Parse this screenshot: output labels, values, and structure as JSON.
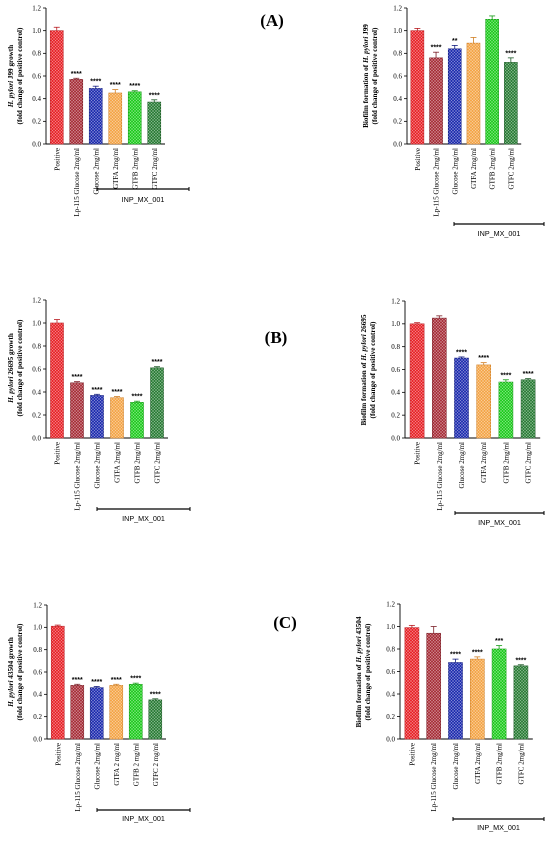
{
  "panel_labels": [
    "(A)",
    "(B)",
    "(C)"
  ],
  "group_label": "INP_MX_001",
  "colors": {
    "red": "#e8262b",
    "maroon": "#a8323c",
    "blue": "#2230b0",
    "orange": "#f4a64a",
    "green": "#22cc22",
    "darkgreen": "#2e7f3a"
  },
  "chart_data": [
    {
      "type": "bar",
      "panel": "(A)",
      "ylabel_italic": "H. pylori",
      "ylabel_line1_rest": " J99 growth",
      "ylabel_line2": "(fold change of positive control)",
      "categories": [
        "Positive",
        "Lp-115 Glucose 2mg/ml",
        "Glucose 2mg/ml",
        "GTFA 2mg/ml",
        "GTFB 2mg/ml",
        "GTFC 2mg/ml"
      ],
      "values": [
        1.0,
        0.57,
        0.49,
        0.45,
        0.46,
        0.37
      ],
      "errors": [
        0.03,
        0.01,
        0.02,
        0.03,
        0.01,
        0.02
      ],
      "significance": [
        "",
        "****",
        "****",
        "****",
        "****",
        "****"
      ],
      "yticks": [
        "0.0",
        "0.2",
        "0.4",
        "0.6",
        "0.8",
        "1.0",
        "1.2"
      ],
      "ylim": [
        0,
        1.2
      ]
    },
    {
      "type": "bar",
      "panel": "(A)",
      "ylabel_line1_pre": "Biofilm formation of ",
      "ylabel_italic": "H. pylori",
      "ylabel_line1_rest": " J99",
      "ylabel_line2": "(fold change of positive control)",
      "categories": [
        "Positive",
        "Lp-115 Glucose 2mg/ml",
        "Glucose 2mg/ml",
        "GTFA 2mg/ml",
        "GTFB 2mg/ml",
        "GTFC 2mg/ml"
      ],
      "values": [
        1.0,
        0.76,
        0.84,
        0.89,
        1.1,
        0.72
      ],
      "errors": [
        0.02,
        0.05,
        0.03,
        0.05,
        0.03,
        0.04
      ],
      "significance": [
        "",
        "****",
        "**",
        "",
        "",
        "****"
      ],
      "yticks": [
        "0.0",
        "0.2",
        "0.4",
        "0.6",
        "0.8",
        "1.0",
        "1.2"
      ],
      "ylim": [
        0,
        1.2
      ]
    },
    {
      "type": "bar",
      "panel": "(B)",
      "ylabel_italic": "H. pylori",
      "ylabel_line1_rest": " 26695 growth",
      "ylabel_line2": "(fold change of positive control)",
      "categories": [
        "Positive",
        "Lp-115 Glucose 2mg/ml",
        "Glucose 2mg/ml",
        "GTFA 2mg/ml",
        "GTFB 2mg/ml",
        "GTFC 2mg/ml"
      ],
      "values": [
        1.0,
        0.48,
        0.37,
        0.35,
        0.31,
        0.61
      ],
      "errors": [
        0.03,
        0.01,
        0.01,
        0.01,
        0.01,
        0.01
      ],
      "significance": [
        "",
        "****",
        "****",
        "****",
        "****",
        "****"
      ],
      "yticks": [
        "0.0",
        "0.2",
        "0.4",
        "0.6",
        "0.8",
        "1.0",
        "1.2"
      ],
      "ylim": [
        0,
        1.2
      ]
    },
    {
      "type": "bar",
      "panel": "(B)",
      "ylabel_line1_pre": "Biofilm formation of ",
      "ylabel_italic": "H. pylori",
      "ylabel_line1_rest": " 26695",
      "ylabel_line2": "(fold change of positive control)",
      "categories": [
        "Positive",
        "Lp-115 Glucose 2mg/ml",
        "Glucose 2mg/ml",
        "GTFA 2mg/ml",
        "GTFB 2mg/ml",
        "GTFC 2mg/ml"
      ],
      "values": [
        1.0,
        1.05,
        0.7,
        0.64,
        0.49,
        0.51
      ],
      "errors": [
        0.01,
        0.02,
        0.01,
        0.02,
        0.02,
        0.01
      ],
      "significance": [
        "",
        "",
        "****",
        "****",
        "****",
        "****"
      ],
      "yticks": [
        "0.0",
        "0.2",
        "0.4",
        "0.6",
        "0.8",
        "1.0",
        "1.2"
      ],
      "ylim": [
        0,
        1.2
      ]
    },
    {
      "type": "bar",
      "panel": "(C)",
      "ylabel_italic": "H. pylori",
      "ylabel_line1_rest": " 43504 growth",
      "ylabel_line2": "(fold change of positive control)",
      "categories": [
        "Positive",
        "Lp-115 Glucose 2mg/ml",
        "Glucose 2mg/ml",
        "GTFA 2 mg/ml",
        "GTFB 2 mg/ml",
        "GTFC 2 mg/ml"
      ],
      "values": [
        1.01,
        0.48,
        0.46,
        0.48,
        0.49,
        0.35
      ],
      "errors": [
        0.01,
        0.01,
        0.01,
        0.01,
        0.01,
        0.01
      ],
      "significance": [
        "",
        "****",
        "****",
        "****",
        "****",
        "****"
      ],
      "yticks": [
        "0.0",
        "0.2",
        "0.4",
        "0.6",
        "0.8",
        "1.0",
        "1.2"
      ],
      "ylim": [
        0,
        1.2
      ]
    },
    {
      "type": "bar",
      "panel": "(C)",
      "ylabel_line1_pre": "Biofilm formation of ",
      "ylabel_italic": "H. pylori",
      "ylabel_line1_rest": " 43504",
      "ylabel_line2": "(fold change of positive control)",
      "categories": [
        "Positive",
        "Lp-115 Glucose 2mg/ml",
        "Glucose 2mg/ml",
        "GTFA 2mg/ml",
        "GTFB 2mg/ml",
        "GTFC 2mg/ml"
      ],
      "values": [
        0.99,
        0.94,
        0.68,
        0.71,
        0.8,
        0.65
      ],
      "errors": [
        0.02,
        0.06,
        0.03,
        0.02,
        0.03,
        0.01
      ],
      "significance": [
        "",
        "",
        "****",
        "****",
        "***",
        "****"
      ],
      "yticks": [
        "0.0",
        "0.2",
        "0.4",
        "0.6",
        "0.8",
        "1.0",
        "1.2"
      ],
      "ylim": [
        0,
        1.2
      ]
    }
  ]
}
